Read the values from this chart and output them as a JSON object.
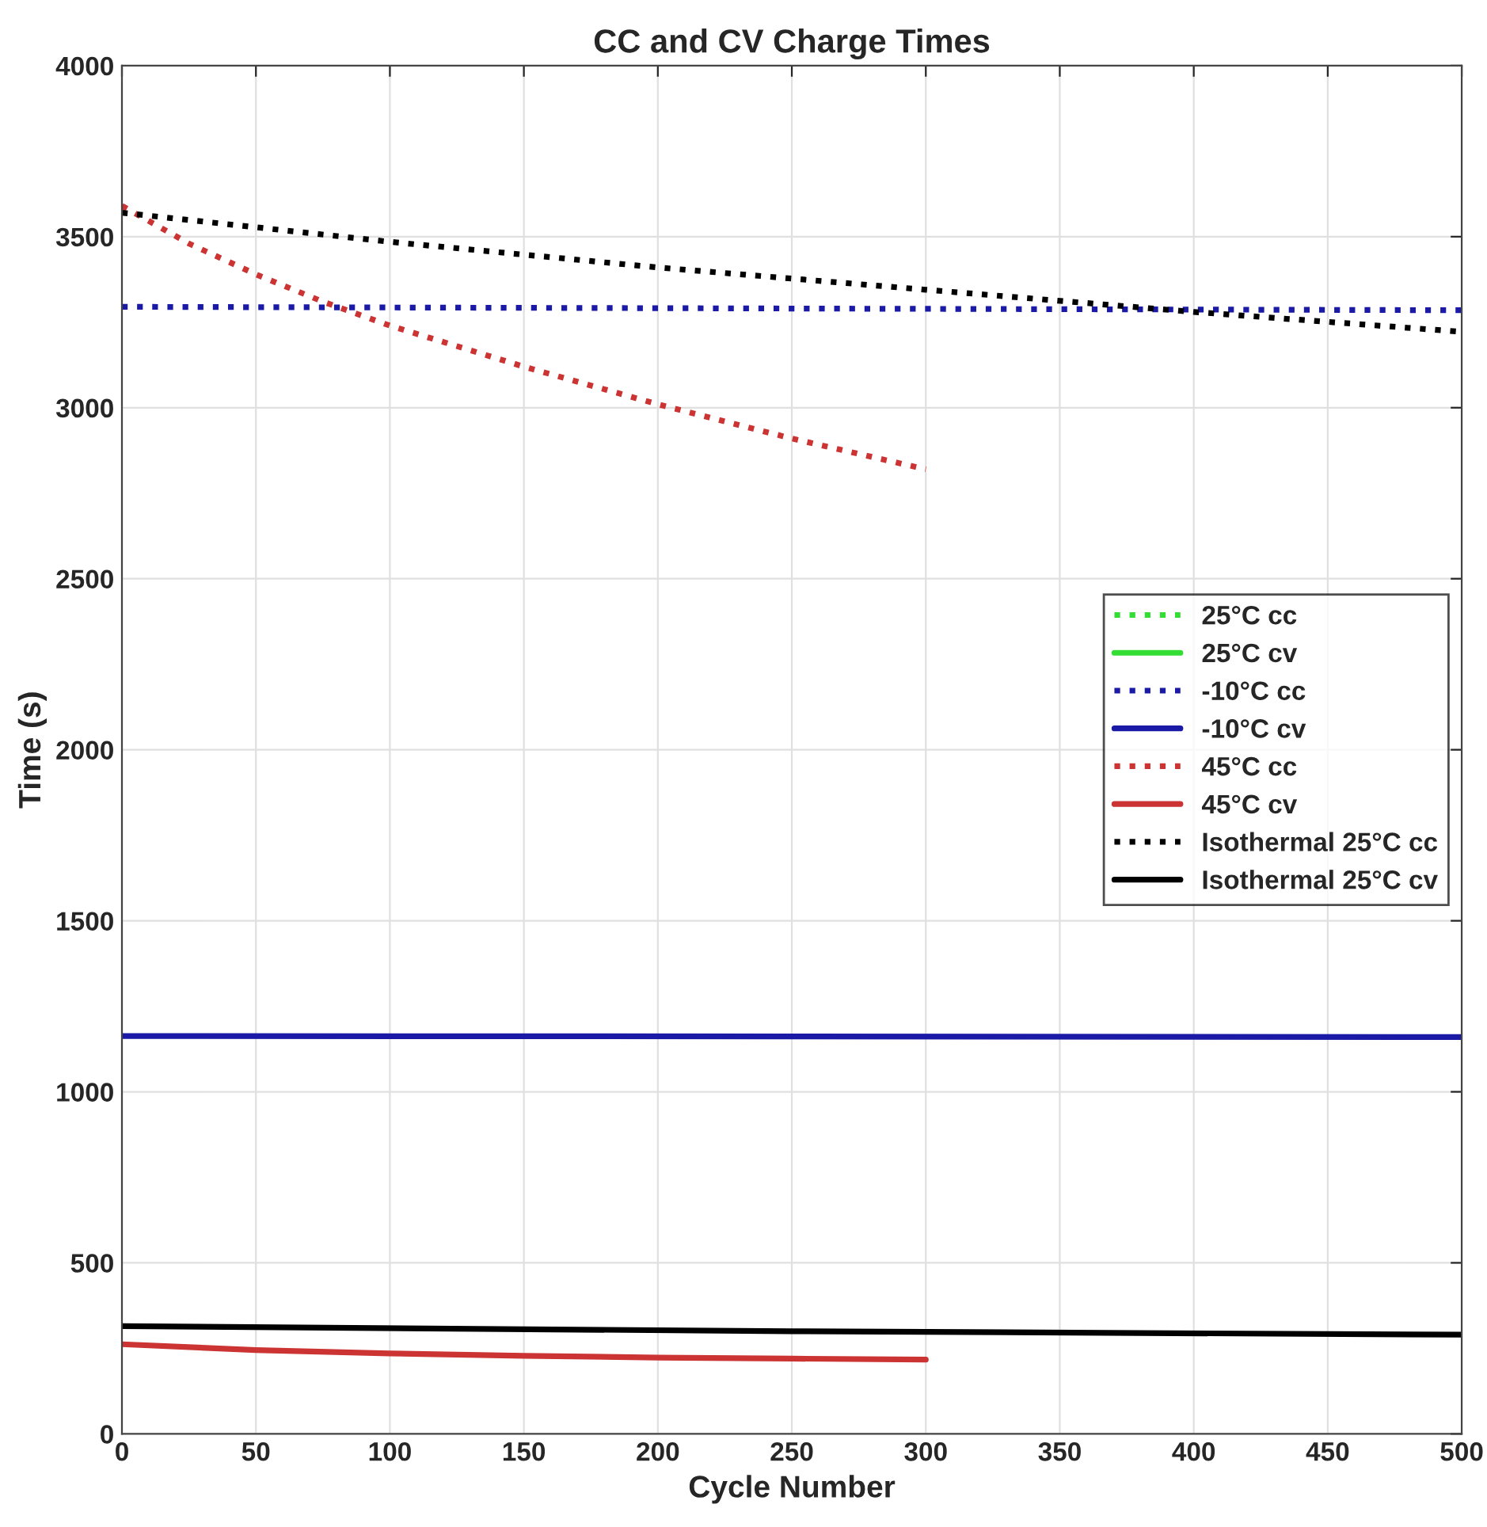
{
  "chart_data": {
    "type": "line",
    "title": "CC and CV Charge Times",
    "xlabel": "Cycle Number",
    "ylabel": "Time (s)",
    "xlim": [
      0,
      500
    ],
    "xticks": [
      0,
      50,
      100,
      150,
      200,
      250,
      300,
      350,
      400,
      450,
      500
    ],
    "ylim": [
      0,
      4000
    ],
    "yticks": [
      0,
      500,
      1000,
      1500,
      2000,
      2500,
      3000,
      3500,
      4000
    ],
    "grid": true,
    "legend": "right",
    "marker": "none",
    "series": [
      {
        "name": "25°C cc",
        "color": "#33dd33",
        "line_style": "dotted"
      },
      {
        "name": "25°C cv",
        "color": "#33dd33",
        "line_style": "solid"
      },
      {
        "name": "-10°C cc",
        "color": "#1a1aa6",
        "line_style": "dotted",
        "x": [
          0,
          100,
          200,
          300,
          400,
          500
        ],
        "values": [
          3295,
          3293,
          3291,
          3289,
          3287,
          3285
        ]
      },
      {
        "name": "-10°C cv",
        "color": "#1a1aa6",
        "line_style": "solid",
        "x": [
          0,
          250,
          500
        ],
        "values": [
          1163,
          1162,
          1160
        ]
      },
      {
        "name": "45°C cc",
        "color": "#cc3333",
        "line_style": "dotted",
        "x": [
          0,
          25,
          50,
          75,
          100,
          150,
          200,
          250,
          300
        ],
        "values": [
          3590,
          3480,
          3390,
          3310,
          3240,
          3120,
          3010,
          2910,
          2820
        ]
      },
      {
        "name": "45°C cv",
        "color": "#cc3333",
        "line_style": "solid",
        "x": [
          0,
          50,
          100,
          150,
          200,
          250,
          300
        ],
        "values": [
          262,
          245,
          235,
          228,
          223,
          220,
          217
        ]
      },
      {
        "name": "Isothermal 25°C cc",
        "color": "#000000",
        "line_style": "dotted",
        "x": [
          0,
          100,
          200,
          300,
          400,
          500
        ],
        "values": [
          3570,
          3485,
          3410,
          3345,
          3280,
          3222
        ]
      },
      {
        "name": "Isothermal 25°C cv",
        "color": "#000000",
        "line_style": "solid",
        "x": [
          0,
          250,
          500
        ],
        "values": [
          315,
          300,
          290
        ]
      }
    ]
  }
}
